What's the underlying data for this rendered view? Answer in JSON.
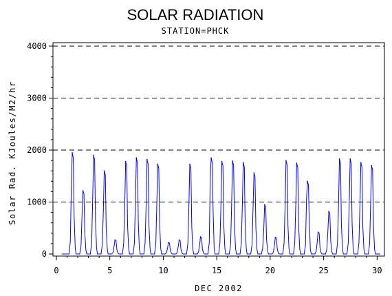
{
  "chart_data": {
    "type": "line",
    "title": "SOLAR RADIATION",
    "subtitle": "STATION=PHCK",
    "xlabel": "DEC 2002",
    "ylabel": "Solar Rad. KJoules/M2/hr",
    "xlim": [
      0,
      30.3
    ],
    "ylim": [
      0,
      4000
    ],
    "x_ticks": [
      0,
      5,
      10,
      15,
      20,
      25,
      30
    ],
    "y_ticks": [
      0,
      1000,
      2000,
      3000,
      4000
    ],
    "y_tick_labels": [
      "0",
      "1000",
      "2000",
      "3000",
      "4000"
    ],
    "gridlines_y": [
      1000,
      2000,
      3000,
      4000
    ],
    "grid": "horizontal dashed",
    "series": [
      {
        "color": "#0000ff",
        "daily_peaks": [
          {
            "day": 1.5,
            "value": 1950,
            "shoulder": 1300
          },
          {
            "day": 2.5,
            "value": 1220,
            "shoulder": 750
          },
          {
            "day": 3.5,
            "value": 1900,
            "shoulder": 1150
          },
          {
            "day": 4.5,
            "value": 1600,
            "shoulder": 900
          },
          {
            "day": 5.5,
            "value": 270,
            "shoulder": 150
          },
          {
            "day": 6.5,
            "value": 1780,
            "shoulder": 1000
          },
          {
            "day": 7.5,
            "value": 1850,
            "shoulder": 1100
          },
          {
            "day": 8.5,
            "value": 1820,
            "shoulder": 1000
          },
          {
            "day": 9.5,
            "value": 1730,
            "shoulder": 1000
          },
          {
            "day": 10.5,
            "value": 220,
            "shoulder": 120
          },
          {
            "day": 11.5,
            "value": 270,
            "shoulder": 150
          },
          {
            "day": 12.5,
            "value": 1730,
            "shoulder": 1000
          },
          {
            "day": 13.5,
            "value": 330,
            "shoulder": 180
          },
          {
            "day": 14.5,
            "value": 1850,
            "shoulder": 1500
          },
          {
            "day": 15.5,
            "value": 1780,
            "shoulder": 1000
          },
          {
            "day": 16.5,
            "value": 1790,
            "shoulder": 1000
          },
          {
            "day": 17.5,
            "value": 1760,
            "shoulder": 1000
          },
          {
            "day": 18.5,
            "value": 1560,
            "shoulder": 900
          },
          {
            "day": 19.5,
            "value": 950,
            "shoulder": 500
          },
          {
            "day": 20.5,
            "value": 320,
            "shoulder": 180
          },
          {
            "day": 21.5,
            "value": 1800,
            "shoulder": 1000
          },
          {
            "day": 22.5,
            "value": 1750,
            "shoulder": 1000
          },
          {
            "day": 23.5,
            "value": 1400,
            "shoulder": 1050
          },
          {
            "day": 24.5,
            "value": 420,
            "shoulder": 230
          },
          {
            "day": 25.5,
            "value": 820,
            "shoulder": 450
          },
          {
            "day": 26.5,
            "value": 1830,
            "shoulder": 1050
          },
          {
            "day": 27.5,
            "value": 1830,
            "shoulder": 1050
          },
          {
            "day": 28.5,
            "value": 1760,
            "shoulder": 1000
          },
          {
            "day": 29.5,
            "value": 1700,
            "shoulder": 1000
          }
        ]
      }
    ]
  }
}
